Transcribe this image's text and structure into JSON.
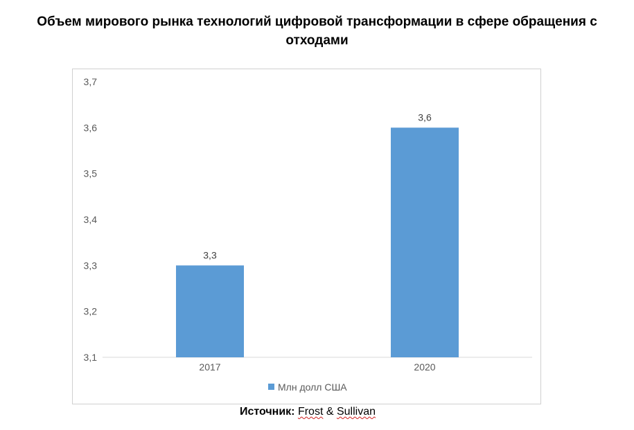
{
  "chart_data": {
    "type": "bar",
    "title": "Объем мирового рынка технологий цифровой трансформации в сфере обращения с отходами",
    "categories": [
      "2017",
      "2020"
    ],
    "series": [
      {
        "name": "Млн долл США",
        "values": [
          3.3,
          3.6
        ],
        "color": "#5b9bd5"
      }
    ],
    "data_labels": [
      "3,3",
      "3,6"
    ],
    "y_ticks": [
      "3,1",
      "3,2",
      "3,3",
      "3,4",
      "3,5",
      "3,6",
      "3,7"
    ],
    "y_tick_values": [
      3.1,
      3.2,
      3.3,
      3.4,
      3.5,
      3.6,
      3.7
    ],
    "ylim": [
      3.1,
      3.7
    ],
    "grid": false,
    "legend": "bottom"
  },
  "source": {
    "label": "Источник:",
    "frost": "Frost",
    "amp": "&",
    "sullivan": "Sullivan"
  }
}
